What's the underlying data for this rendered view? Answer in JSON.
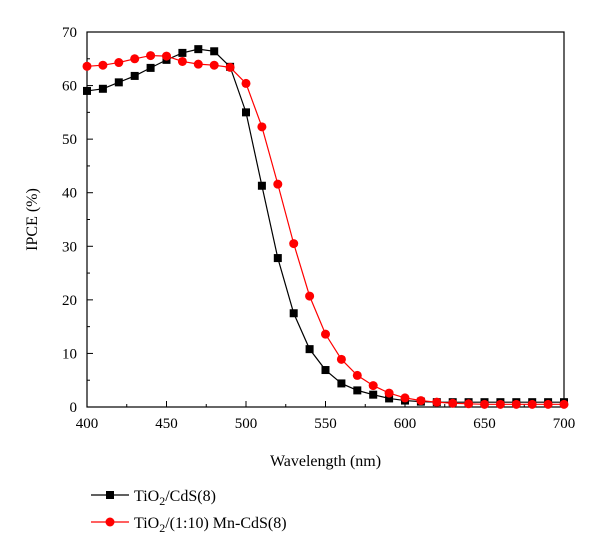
{
  "chart_data": {
    "type": "line",
    "title": "",
    "xlabel": "Wavelength (nm)",
    "ylabel": "IPCE (%)",
    "xlim": [
      400,
      700
    ],
    "ylim": [
      0,
      70
    ],
    "xticks": [
      400,
      450,
      500,
      550,
      600,
      650,
      700
    ],
    "yticks": [
      0,
      10,
      20,
      30,
      40,
      50,
      60,
      70
    ],
    "grid": false,
    "legend_position": "bottom-left, below plot",
    "x": [
      400,
      410,
      420,
      430,
      440,
      450,
      460,
      470,
      480,
      490,
      500,
      510,
      520,
      530,
      540,
      550,
      560,
      570,
      580,
      590,
      600,
      610,
      620,
      630,
      640,
      650,
      660,
      670,
      680,
      690,
      700
    ],
    "series": [
      {
        "name": "TiO2/CdS(8)",
        "name_parts": {
          "before": "TiO",
          "sub": "2",
          "after": "/CdS(8)"
        },
        "color": "#000000",
        "marker": "square",
        "values": [
          59.0,
          59.4,
          60.6,
          61.8,
          63.3,
          64.8,
          66.1,
          66.8,
          66.4,
          63.5,
          55.0,
          41.3,
          27.8,
          17.5,
          10.8,
          6.9,
          4.4,
          3.1,
          2.3,
          1.6,
          1.2,
          1.0,
          0.9,
          0.9,
          0.9,
          0.9,
          0.9,
          0.9,
          0.9,
          0.9,
          0.9
        ]
      },
      {
        "name": "TiO2/(1:10) Mn-CdS(8)",
        "name_parts": {
          "before": "TiO",
          "sub": "2",
          "after": "/(1:10) Mn-CdS(8)"
        },
        "color": "#ff0000",
        "marker": "circle",
        "values": [
          63.6,
          63.8,
          64.3,
          65.0,
          65.6,
          65.5,
          64.5,
          64.0,
          63.8,
          63.4,
          60.4,
          52.3,
          41.6,
          30.5,
          20.7,
          13.6,
          8.9,
          5.9,
          4.0,
          2.6,
          1.7,
          1.2,
          0.9,
          0.7,
          0.6,
          0.5,
          0.5,
          0.5,
          0.5,
          0.5,
          0.5
        ]
      }
    ]
  }
}
